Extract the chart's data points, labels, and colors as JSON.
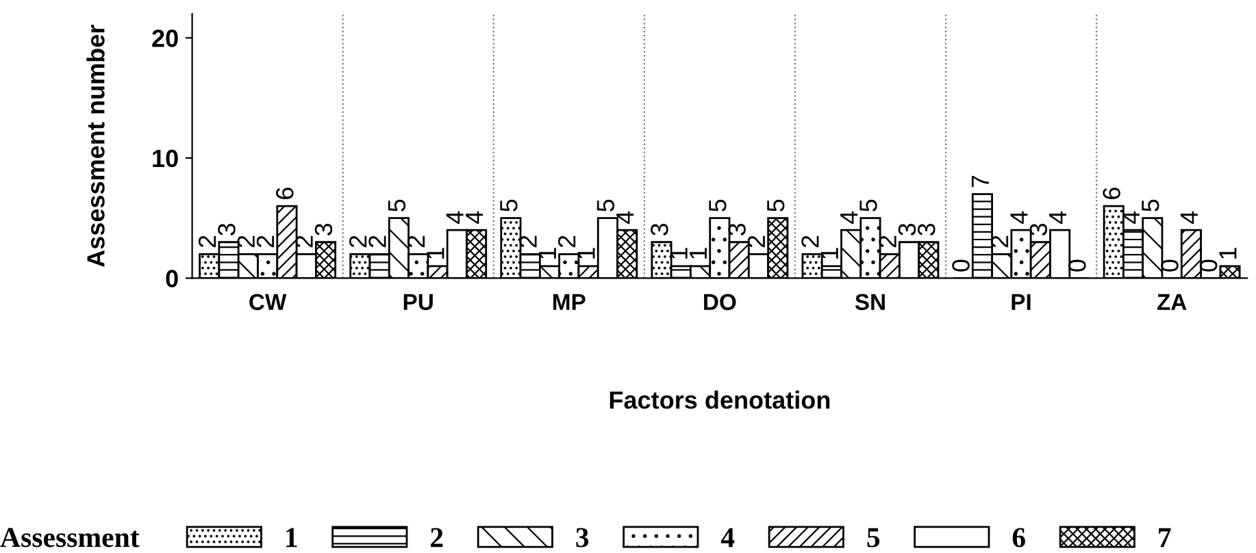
{
  "chart_data": {
    "type": "bar",
    "xlabel": "Factors denotation",
    "ylabel": "Assessment number",
    "legend_title": "Assessment",
    "legend": "bottom",
    "data_labels": true,
    "categories": [
      "CW",
      "PU",
      "MP",
      "DO",
      "SN",
      "PI",
      "ZA"
    ],
    "ylim": [
      0,
      22
    ],
    "yticks": [
      0,
      10,
      20
    ],
    "series": [
      {
        "name": "1",
        "color": "#000000",
        "values": [
          2,
          2,
          5,
          3,
          2,
          0,
          6
        ]
      },
      {
        "name": "2",
        "color": "#000000",
        "values": [
          3,
          2,
          2,
          1,
          1,
          7,
          4
        ]
      },
      {
        "name": "3",
        "color": "#000000",
        "values": [
          2,
          5,
          1,
          1,
          4,
          2,
          5
        ]
      },
      {
        "name": "4",
        "color": "#000000",
        "values": [
          2,
          2,
          2,
          5,
          5,
          4,
          0
        ]
      },
      {
        "name": "5",
        "color": "#000000",
        "values": [
          6,
          1,
          1,
          3,
          2,
          3,
          4
        ]
      },
      {
        "name": "6",
        "color": "#000000",
        "values": [
          2,
          4,
          5,
          2,
          3,
          4,
          0
        ]
      },
      {
        "name": "7",
        "color": "#000000",
        "values": [
          3,
          4,
          4,
          5,
          3,
          0,
          1
        ]
      }
    ]
  }
}
